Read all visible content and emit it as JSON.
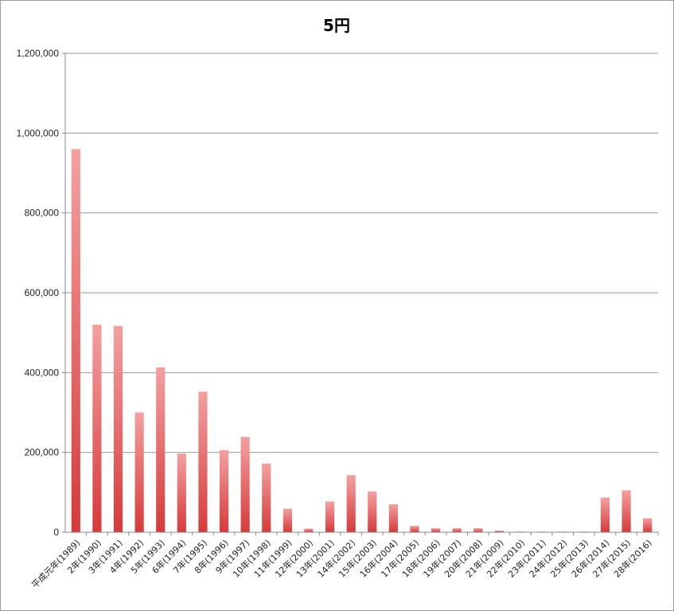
{
  "chart_data": {
    "type": "bar",
    "title": "5円",
    "xlabel": "",
    "ylabel": "",
    "ylim": [
      0,
      1200000
    ],
    "yticks": [
      0,
      200000,
      400000,
      600000,
      800000,
      1000000,
      1200000
    ],
    "ytick_labels": [
      "0",
      "200,000",
      "400,000",
      "600,000",
      "800,000",
      "1,000,000",
      "1,200,000"
    ],
    "grid": true,
    "legend": "none",
    "bar_color_top": "#f4a0a0",
    "bar_color_bottom": "#d63a3a",
    "categories": [
      "平成元年(1989)",
      "2年(1990)",
      "3年(1991)",
      "4年(1992)",
      "5年(1993)",
      "6年(1994)",
      "7年(1995)",
      "8年(1996)",
      "9年(1997)",
      "10年(1998)",
      "11年(1999)",
      "12年(2000)",
      "13年(2001)",
      "14年(2002)",
      "15年(2003)",
      "16年(2004)",
      "17年(2005)",
      "18年(2006)",
      "19年(2007)",
      "20年(2008)",
      "21年(2009)",
      "22年(2010)",
      "23年(2011)",
      "24年(2012)",
      "25年(2013)",
      "26年(2014)",
      "27年(2015)",
      "28年(2016)"
    ],
    "values": [
      960000,
      520000,
      517000,
      300000,
      413000,
      197000,
      352000,
      206000,
      239000,
      172000,
      59000,
      9000,
      77000,
      143000,
      102000,
      70000,
      16000,
      10000,
      10000,
      10000,
      4000,
      1000,
      1000,
      1000,
      1000,
      87000,
      105000,
      35000
    ]
  }
}
